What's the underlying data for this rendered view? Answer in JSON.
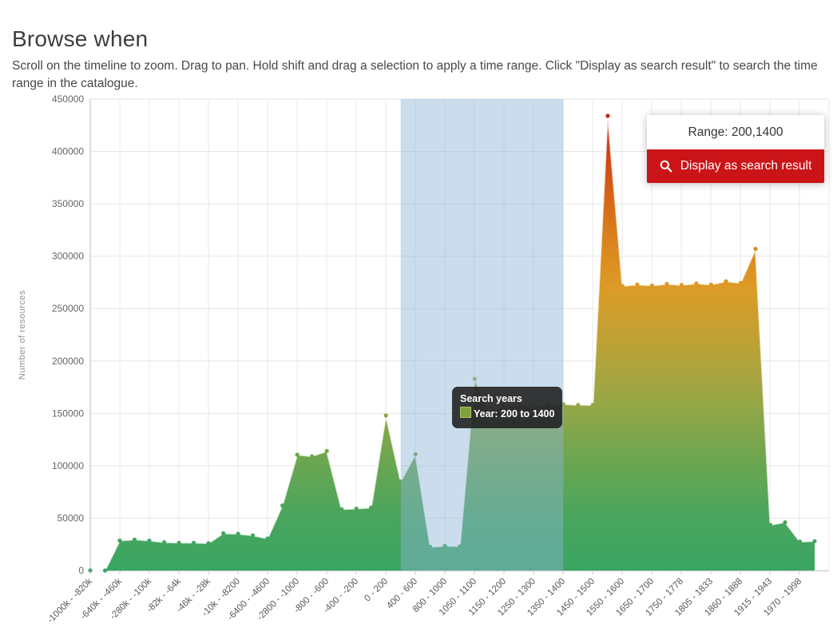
{
  "page": {
    "title": "Browse when",
    "subtitle": "Scroll on the timeline to zoom. Drag to pan. Hold shift and drag a selection to apply a time range. Click \"Display as search result\" to search the time range in the catalogue."
  },
  "range_panel": {
    "range_label": "Range: 200,1400",
    "button_label": "Display as search result",
    "button_color": "#cb1418",
    "icon": "search-icon"
  },
  "tooltip": {
    "title": "Search years",
    "series_label": "Year: 200 to 1400",
    "swatch_color": "#7fa23c"
  },
  "chart_data": {
    "type": "area",
    "title": "",
    "xlabel": "",
    "ylabel": "Number of resources",
    "ylim": [
      0,
      450000
    ],
    "grid": true,
    "legend": "none",
    "y_tick_labels": [
      "0",
      "50000",
      "100000",
      "150000",
      "200000",
      "250000",
      "300000",
      "350000",
      "400000",
      "450000"
    ],
    "x_tick_labels": [
      "-1000k - -820k",
      "-640k - -460k",
      "-280k - -100k",
      "-82k - -64k",
      "-46k - -28k",
      "-10k - -8200",
      "-6400 - -4600",
      "-2800 - -1000",
      "-800 - -600",
      "-400 - -200",
      "0 - 200",
      "400 - 600",
      "800 - 1000",
      "1050 - 1100",
      "1150 - 1200",
      "1250 - 1300",
      "1350 - 1400",
      "1450 - 1500",
      "1550 - 1600",
      "1650 - 1700",
      "1750 - 1778",
      "1805 - 1833",
      "1860 - 1888",
      "1915 - 1943",
      "1970 - 1998"
    ],
    "values": [
      0,
      0,
      28500,
      29500,
      28500,
      27000,
      26500,
      26500,
      26000,
      35500,
      35000,
      33500,
      30500,
      62000,
      110500,
      109000,
      114000,
      58500,
      59000,
      60000,
      148000,
      85000,
      111000,
      22500,
      23500,
      23000,
      183000,
      151000,
      157000,
      158000,
      157000,
      158500,
      158700,
      158000,
      158000,
      434000,
      271500,
      273000,
      272000,
      273500,
      272500,
      274000,
      273000,
      276000,
      274500,
      307000,
      43500,
      46000,
      27500,
      28000
    ],
    "selection": {
      "years": [
        200,
        1400
      ],
      "point_range": [
        21,
        32
      ],
      "fill": "rgba(140,180,215,0.45)"
    },
    "gradient_stops": [
      [
        "0%",
        "#c3170c"
      ],
      [
        "9%",
        "#cb3a10"
      ],
      [
        "19%",
        "#d46016"
      ],
      [
        "30%",
        "#db831d"
      ],
      [
        "40%",
        "#dc9b26"
      ],
      [
        "49%",
        "#c5a032"
      ],
      [
        "57%",
        "#ada43d"
      ],
      [
        "66%",
        "#91a747"
      ],
      [
        "76%",
        "#6ea650"
      ],
      [
        "88%",
        "#4aa55c"
      ],
      [
        "100%",
        "#3aa563"
      ]
    ]
  }
}
